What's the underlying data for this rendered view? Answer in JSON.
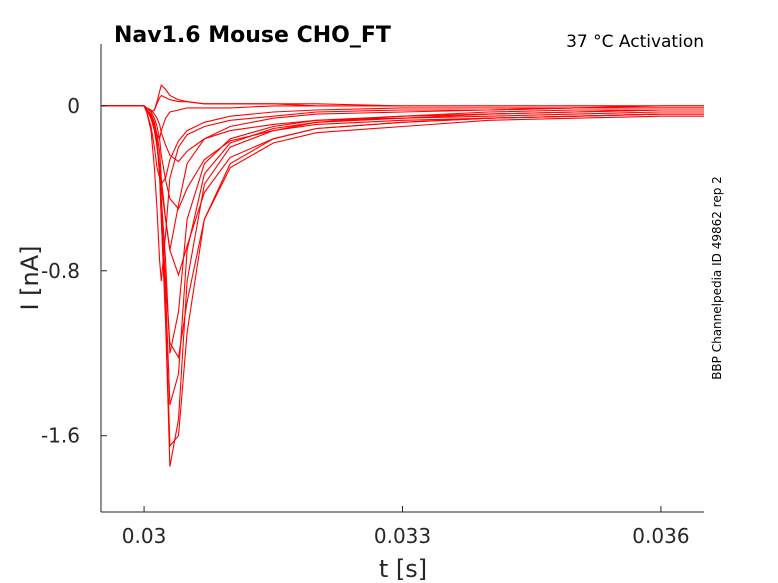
{
  "title": "Nav1.6  Mouse  CHO_FT",
  "condition": "37 °C  Activation",
  "source_label": "BBP Channelpedia ID 49862 rep 2",
  "colors": {
    "trace": "#ff0000",
    "axis": "#262626"
  },
  "chart_data": {
    "type": "line",
    "xlabel": "t [s]",
    "ylabel": "I [nA]",
    "xlim": [
      0.0295,
      0.0365
    ],
    "ylim": [
      -1.97,
      0.3
    ],
    "xticks": [
      0.03,
      0.033,
      0.036
    ],
    "xtick_labels": [
      "0.03",
      "0.033",
      "0.036"
    ],
    "yticks": [
      -1.6,
      -0.8,
      0
    ],
    "ytick_labels": [
      "-1.6",
      "-0.8",
      "0"
    ],
    "grid": false,
    "legend": "none",
    "x": [
      0.0295,
      0.03,
      0.03003,
      0.03008,
      0.03012,
      0.03015,
      0.03018,
      0.0302,
      0.03025,
      0.0303,
      0.0304,
      0.0305,
      0.0307,
      0.031,
      0.0315,
      0.032,
      0.033,
      0.034,
      0.035,
      0.036,
      0.0365
    ],
    "series": [
      {
        "values": [
          0.0,
          0.0,
          -0.01,
          -0.03,
          -0.02,
          0.01,
          0.04,
          0.05,
          0.04,
          0.03,
          0.02,
          0.02,
          0.01,
          0.01,
          0.01,
          0.01,
          0.0,
          0.0,
          0.0,
          0.0,
          0.0
        ]
      },
      {
        "values": [
          0.0,
          0.0,
          -0.01,
          -0.03,
          -0.02,
          0.02,
          0.07,
          0.1,
          0.08,
          0.05,
          0.03,
          0.02,
          0.01,
          0.01,
          0.01,
          0.0,
          0.0,
          0.0,
          0.0,
          0.0,
          0.0
        ]
      },
      {
        "values": [
          0.0,
          0.0,
          -0.02,
          -0.06,
          -0.1,
          -0.14,
          -0.16,
          -0.12,
          -0.06,
          -0.03,
          -0.02,
          -0.01,
          -0.01,
          -0.01,
          0.0,
          0.0,
          0.0,
          0.0,
          0.0,
          0.0,
          0.0
        ]
      },
      {
        "values": [
          0.0,
          0.0,
          -0.03,
          -0.1,
          -0.2,
          -0.3,
          -0.35,
          -0.38,
          -0.35,
          -0.26,
          -0.17,
          -0.12,
          -0.08,
          -0.05,
          -0.03,
          -0.02,
          -0.01,
          -0.01,
          -0.01,
          0.0,
          0.0
        ]
      },
      {
        "values": [
          0.0,
          0.0,
          -0.03,
          -0.12,
          -0.3,
          -0.5,
          -0.75,
          -0.85,
          -0.62,
          -0.35,
          -0.2,
          -0.14,
          -0.1,
          -0.07,
          -0.05,
          -0.03,
          -0.02,
          -0.02,
          -0.01,
          -0.01,
          -0.01
        ]
      },
      {
        "values": [
          0.0,
          0.0,
          -0.02,
          -0.06,
          -0.12,
          -0.2,
          -0.3,
          -0.4,
          -0.55,
          -0.7,
          -0.48,
          -0.28,
          -0.16,
          -0.1,
          -0.06,
          -0.04,
          -0.03,
          -0.02,
          -0.01,
          -0.01,
          -0.01
        ]
      },
      {
        "values": [
          0.0,
          0.0,
          -0.02,
          -0.05,
          -0.1,
          -0.17,
          -0.3,
          -0.45,
          -0.75,
          -1.2,
          -1.0,
          -0.55,
          -0.28,
          -0.16,
          -0.1,
          -0.07,
          -0.05,
          -0.03,
          -0.02,
          -0.02,
          -0.02
        ]
      },
      {
        "values": [
          0.0,
          0.0,
          -0.02,
          -0.05,
          -0.1,
          -0.18,
          -0.32,
          -0.5,
          -0.9,
          -1.45,
          -1.3,
          -0.7,
          -0.33,
          -0.18,
          -0.11,
          -0.08,
          -0.05,
          -0.04,
          -0.03,
          -0.02,
          -0.02
        ]
      },
      {
        "values": [
          0.0,
          0.0,
          -0.02,
          -0.05,
          -0.1,
          -0.18,
          -0.33,
          -0.55,
          -1.05,
          -1.75,
          -1.52,
          -0.85,
          -0.38,
          -0.2,
          -0.12,
          -0.08,
          -0.06,
          -0.04,
          -0.03,
          -0.02,
          -0.02
        ]
      },
      {
        "values": [
          0.0,
          0.0,
          -0.02,
          -0.05,
          -0.1,
          -0.18,
          -0.33,
          -0.55,
          -1.0,
          -1.65,
          -1.6,
          -1.1,
          -0.55,
          -0.28,
          -0.16,
          -0.11,
          -0.08,
          -0.06,
          -0.05,
          -0.04,
          -0.04
        ]
      },
      {
        "values": [
          0.0,
          0.0,
          -0.02,
          -0.05,
          -0.1,
          -0.18,
          -0.3,
          -0.5,
          -0.85,
          -1.15,
          -1.22,
          -0.95,
          -0.55,
          -0.3,
          -0.18,
          -0.13,
          -0.1,
          -0.07,
          -0.06,
          -0.05,
          -0.05
        ]
      },
      {
        "values": [
          0.0,
          0.0,
          -0.02,
          -0.04,
          -0.08,
          -0.14,
          -0.22,
          -0.35,
          -0.55,
          -0.7,
          -0.82,
          -0.68,
          -0.42,
          -0.25,
          -0.16,
          -0.11,
          -0.08,
          -0.06,
          -0.05,
          -0.04,
          -0.04
        ]
      },
      {
        "values": [
          0.0,
          0.0,
          -0.01,
          -0.03,
          -0.06,
          -0.1,
          -0.16,
          -0.24,
          -0.36,
          -0.45,
          -0.5,
          -0.4,
          -0.26,
          -0.17,
          -0.12,
          -0.09,
          -0.07,
          -0.06,
          -0.05,
          -0.04,
          -0.04
        ]
      },
      {
        "values": [
          0.0,
          0.0,
          -0.01,
          -0.02,
          -0.04,
          -0.06,
          -0.09,
          -0.13,
          -0.19,
          -0.24,
          -0.27,
          -0.22,
          -0.16,
          -0.12,
          -0.09,
          -0.07,
          -0.06,
          -0.05,
          -0.04,
          -0.03,
          -0.03
        ]
      }
    ]
  }
}
